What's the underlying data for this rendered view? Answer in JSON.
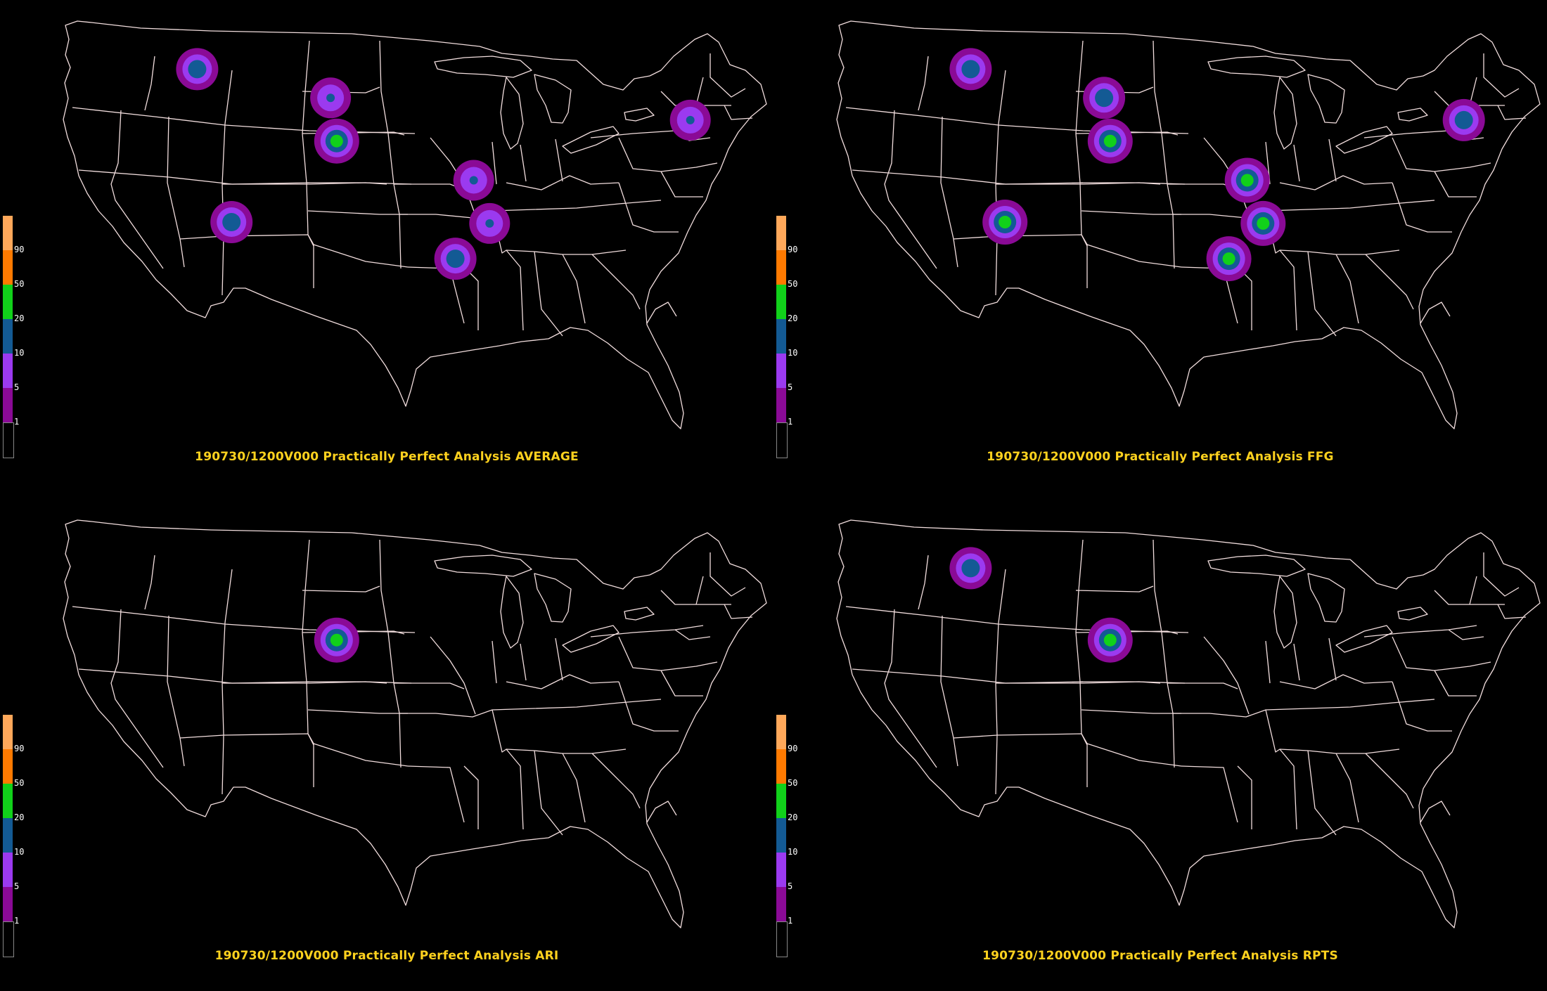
{
  "colors": {
    "background": "#000000",
    "boundary": "#f2dede",
    "title": "#ffd21e",
    "level_1": "#8a0a96",
    "level_5": "#9b3af0",
    "level_10": "#135a94",
    "level_20": "#11d11a",
    "level_50": "#ff7a00",
    "level_90": "#ffa85a"
  },
  "legend": {
    "labels": [
      "90",
      "50",
      "20",
      "10",
      "5",
      "1"
    ]
  },
  "panels": [
    {
      "title": "190730/1200V000 Practically Perfect Analysis AVERAGE",
      "hotspots": [
        {
          "region": "Idaho/Montana",
          "lat": 45.5,
          "lon": -113.4,
          "max_level": 10
        },
        {
          "region": "SW South Dakota",
          "lat": 43.3,
          "lon": -102.5,
          "max_level": 5
        },
        {
          "region": "NE Colorado/W Kansas",
          "lat": 40.0,
          "lon": -102.0,
          "max_level": 20
        },
        {
          "region": "SE Missouri",
          "lat": 37.0,
          "lon": -90.8,
          "max_level": 5
        },
        {
          "region": "Arizona",
          "lat": 33.8,
          "lon": -110.6,
          "max_level": 10
        },
        {
          "region": "N Mississippi",
          "lat": 33.7,
          "lon": -89.5,
          "max_level": 5
        },
        {
          "region": "Louisiana",
          "lat": 31.0,
          "lon": -92.3,
          "max_level": 10
        },
        {
          "region": "Connecticut",
          "lat": 41.6,
          "lon": -73.1,
          "max_level": 5
        }
      ]
    },
    {
      "title": "190730/1200V000 Practically Perfect Analysis FFG",
      "hotspots": [
        {
          "region": "Idaho/Montana",
          "lat": 45.5,
          "lon": -113.4,
          "max_level": 10
        },
        {
          "region": "SW South Dakota",
          "lat": 43.3,
          "lon": -102.5,
          "max_level": 10
        },
        {
          "region": "NE Colorado/W Kansas",
          "lat": 40.0,
          "lon": -102.0,
          "max_level": 20
        },
        {
          "region": "SE Missouri",
          "lat": 37.0,
          "lon": -90.8,
          "max_level": 20
        },
        {
          "region": "Arizona",
          "lat": 33.8,
          "lon": -110.6,
          "max_level": 20
        },
        {
          "region": "N Mississippi",
          "lat": 33.7,
          "lon": -89.5,
          "max_level": 20
        },
        {
          "region": "Louisiana",
          "lat": 31.0,
          "lon": -92.3,
          "max_level": 20
        },
        {
          "region": "Connecticut",
          "lat": 41.6,
          "lon": -73.1,
          "max_level": 10
        }
      ]
    },
    {
      "title": "190730/1200V000 Practically Perfect Analysis ARI",
      "hotspots": [
        {
          "region": "NE Colorado",
          "lat": 40.0,
          "lon": -102.0,
          "max_level": 20
        }
      ]
    },
    {
      "title": "190730/1200V000 Practically Perfect Analysis RPTS",
      "hotspots": [
        {
          "region": "Idaho/Montana",
          "lat": 45.5,
          "lon": -113.4,
          "max_level": 10
        },
        {
          "region": "NE Colorado/W Kansas",
          "lat": 40.0,
          "lon": -102.0,
          "max_level": 20
        }
      ]
    }
  ]
}
